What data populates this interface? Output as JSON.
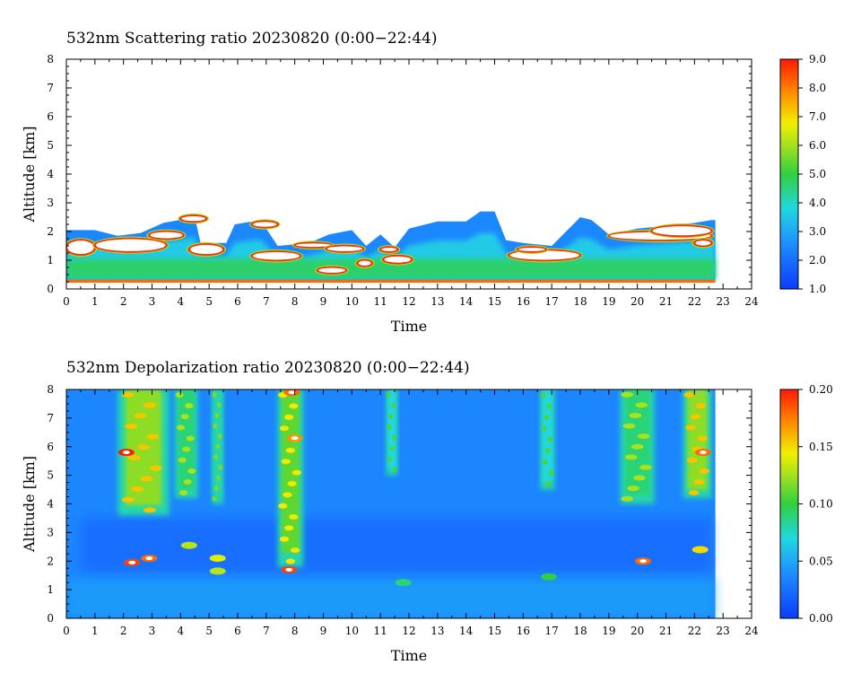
{
  "chart_data": [
    {
      "type": "heatmap",
      "title": "532nm Scattering ratio  20230820 (0:00−22:44)",
      "xlabel": "Time",
      "ylabel": "Altitude [km]",
      "xlim": [
        0,
        24
      ],
      "ylim": [
        0,
        8
      ],
      "x_ticks": [
        "0",
        "1",
        "2",
        "3",
        "4",
        "5",
        "6",
        "7",
        "8",
        "9",
        "10",
        "11",
        "12",
        "13",
        "14",
        "15",
        "16",
        "17",
        "18",
        "19",
        "20",
        "21",
        "22",
        "23",
        "24"
      ],
      "y_ticks": [
        "0",
        "1",
        "2",
        "3",
        "4",
        "5",
        "6",
        "7",
        "8"
      ],
      "data_end_hour": 22.73,
      "colorbar": {
        "min": 1.0,
        "max": 9.0,
        "tick_labels": [
          "1.0",
          "2.0",
          "3.0",
          "4.0",
          "5.0",
          "6.0",
          "7.0",
          "8.0",
          "9.0"
        ]
      },
      "aerosol_layer_top_km": [
        [
          0.0,
          2.05
        ],
        [
          1.0,
          2.05
        ],
        [
          1.8,
          1.85
        ],
        [
          2.6,
          1.95
        ],
        [
          3.4,
          2.3
        ],
        [
          4.5,
          2.5
        ],
        [
          4.7,
          1.6
        ],
        [
          5.6,
          1.6
        ],
        [
          5.9,
          2.25
        ],
        [
          6.8,
          2.4
        ],
        [
          7.4,
          1.5
        ],
        [
          8.5,
          1.6
        ],
        [
          9.2,
          1.9
        ],
        [
          10.0,
          2.05
        ],
        [
          10.5,
          1.5
        ],
        [
          11.0,
          1.9
        ],
        [
          11.5,
          1.45
        ],
        [
          12.0,
          2.1
        ],
        [
          13.0,
          2.35
        ],
        [
          14.0,
          2.35
        ],
        [
          14.5,
          2.7
        ],
        [
          15.0,
          2.7
        ],
        [
          15.4,
          1.7
        ],
        [
          16.0,
          1.6
        ],
        [
          17.0,
          1.5
        ],
        [
          17.5,
          2.0
        ],
        [
          18.0,
          2.5
        ],
        [
          18.4,
          2.4
        ],
        [
          19.0,
          1.9
        ],
        [
          20.0,
          2.1
        ],
        [
          21.0,
          2.2
        ],
        [
          22.0,
          2.3
        ],
        [
          22.6,
          2.4
        ]
      ],
      "strong_layers": [
        {
          "start": 0.0,
          "end": 1.0,
          "base_km": 1.2,
          "top_km": 1.7
        },
        {
          "start": 1.0,
          "end": 3.5,
          "base_km": 1.3,
          "top_km": 1.75
        },
        {
          "start": 2.9,
          "end": 4.1,
          "base_km": 1.75,
          "top_km": 2.0
        },
        {
          "start": 4.0,
          "end": 4.9,
          "base_km": 2.35,
          "top_km": 2.55
        },
        {
          "start": 4.3,
          "end": 5.5,
          "base_km": 1.2,
          "top_km": 1.55
        },
        {
          "start": 6.5,
          "end": 7.4,
          "base_km": 2.15,
          "top_km": 2.35
        },
        {
          "start": 6.5,
          "end": 8.2,
          "base_km": 1.0,
          "top_km": 1.3
        },
        {
          "start": 8.0,
          "end": 9.3,
          "base_km": 1.45,
          "top_km": 1.6
        },
        {
          "start": 9.1,
          "end": 10.4,
          "base_km": 1.3,
          "top_km": 1.5
        },
        {
          "start": 8.8,
          "end": 9.8,
          "base_km": 0.55,
          "top_km": 0.75
        },
        {
          "start": 10.2,
          "end": 10.7,
          "base_km": 0.8,
          "top_km": 1.0
        },
        {
          "start": 11.1,
          "end": 12.1,
          "base_km": 0.9,
          "top_km": 1.15
        },
        {
          "start": 11.0,
          "end": 11.6,
          "base_km": 1.3,
          "top_km": 1.45
        },
        {
          "start": 15.5,
          "end": 18.0,
          "base_km": 1.0,
          "top_km": 1.35
        },
        {
          "start": 15.8,
          "end": 16.8,
          "base_km": 1.3,
          "top_km": 1.45
        },
        {
          "start": 19.0,
          "end": 22.6,
          "base_km": 1.7,
          "top_km": 2.0
        },
        {
          "start": 20.5,
          "end": 22.6,
          "base_km": 1.85,
          "top_km": 2.2
        },
        {
          "start": 22.0,
          "end": 22.6,
          "base_km": 1.5,
          "top_km": 1.7
        }
      ],
      "surface_layer_km": [
        0.22,
        0.32
      ]
    },
    {
      "type": "heatmap",
      "title": "532nm Depolarization ratio  20230820 (0:00−22:44)",
      "xlabel": "Time",
      "ylabel": "Altitude [km]",
      "xlim": [
        0,
        24
      ],
      "ylim": [
        0,
        8
      ],
      "x_ticks": [
        "0",
        "1",
        "2",
        "3",
        "4",
        "5",
        "6",
        "7",
        "8",
        "9",
        "10",
        "11",
        "12",
        "13",
        "14",
        "15",
        "16",
        "17",
        "18",
        "19",
        "20",
        "21",
        "22",
        "23",
        "24"
      ],
      "y_ticks": [
        "0",
        "1",
        "2",
        "3",
        "4",
        "5",
        "6",
        "7",
        "8"
      ],
      "data_end_hour": 22.73,
      "colorbar": {
        "min": 0.0,
        "max": 0.2,
        "tick_labels": [
          "0.00",
          "0.05",
          "0.10",
          "0.15",
          "0.20"
        ]
      },
      "high_depol_columns": [
        {
          "start": 1.8,
          "end": 3.6,
          "base_km": 3.6,
          "top_km": 8.0,
          "value": 0.12
        },
        {
          "start": 3.8,
          "end": 4.6,
          "base_km": 4.2,
          "top_km": 8.0,
          "value": 0.09
        },
        {
          "start": 5.1,
          "end": 5.5,
          "base_km": 4.0,
          "top_km": 8.0,
          "value": 0.08
        },
        {
          "start": 7.4,
          "end": 8.3,
          "base_km": 1.8,
          "top_km": 8.0,
          "value": 0.11
        },
        {
          "start": 11.2,
          "end": 11.6,
          "base_km": 5.0,
          "top_km": 8.0,
          "value": 0.07
        },
        {
          "start": 16.6,
          "end": 17.1,
          "base_km": 4.5,
          "top_km": 8.0,
          "value": 0.07
        },
        {
          "start": 19.4,
          "end": 20.6,
          "base_km": 4.0,
          "top_km": 8.0,
          "value": 0.09
        },
        {
          "start": 21.6,
          "end": 22.6,
          "base_km": 4.2,
          "top_km": 8.0,
          "value": 0.12
        }
      ],
      "low_depol_band_km": [
        1.6,
        3.5
      ],
      "low_depol_value": 0.015,
      "background_value": 0.035,
      "hot_spots": [
        {
          "time": 2.1,
          "alt_km": 5.8,
          "value": 0.2
        },
        {
          "time": 2.3,
          "alt_km": 1.95,
          "value": 0.19
        },
        {
          "time": 2.9,
          "alt_km": 2.1,
          "value": 0.18
        },
        {
          "time": 4.3,
          "alt_km": 2.55,
          "value": 0.13
        },
        {
          "time": 5.3,
          "alt_km": 2.1,
          "value": 0.14
        },
        {
          "time": 5.3,
          "alt_km": 1.65,
          "value": 0.13
        },
        {
          "time": 7.8,
          "alt_km": 1.7,
          "value": 0.19
        },
        {
          "time": 7.9,
          "alt_km": 7.9,
          "value": 0.18
        },
        {
          "time": 8.0,
          "alt_km": 6.3,
          "value": 0.17
        },
        {
          "time": 11.8,
          "alt_km": 1.25,
          "value": 0.09
        },
        {
          "time": 16.9,
          "alt_km": 1.45,
          "value": 0.1
        },
        {
          "time": 20.2,
          "alt_km": 2.0,
          "value": 0.18
        },
        {
          "time": 22.2,
          "alt_km": 2.4,
          "value": 0.15
        },
        {
          "time": 22.3,
          "alt_km": 5.8,
          "value": 0.18
        }
      ]
    }
  ]
}
